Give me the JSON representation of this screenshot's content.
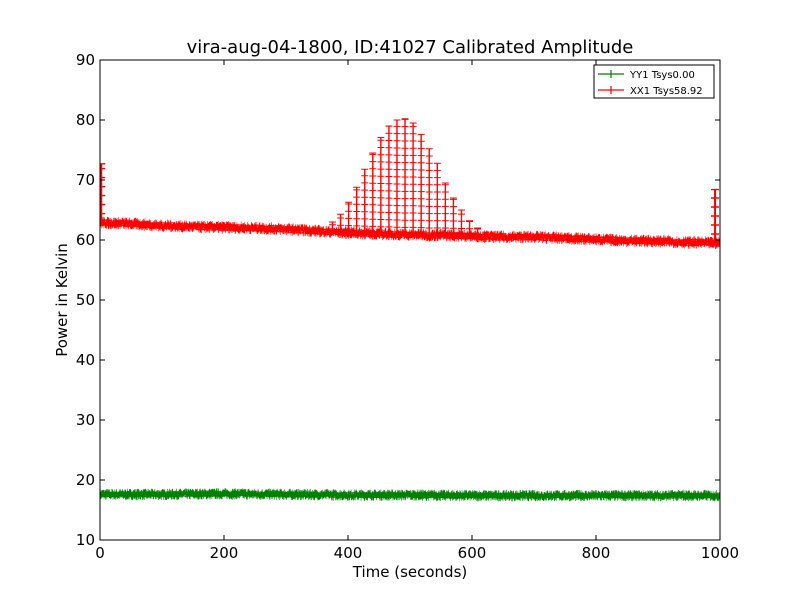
{
  "chart_data": {
    "type": "line",
    "title": "vira-aug-04-1800, ID:41027 Calibrated Amplitude",
    "xlabel": "Time (seconds)",
    "ylabel": "Power in Kelvin",
    "xlim": [
      0,
      1000
    ],
    "ylim": [
      10,
      90
    ],
    "x_ticks": [
      "0",
      "200",
      "400",
      "600",
      "800",
      "1000"
    ],
    "y_ticks": [
      "10",
      "20",
      "30",
      "40",
      "50",
      "60",
      "70",
      "80",
      "90"
    ],
    "grid": false,
    "legend_position": "top-right",
    "series": [
      {
        "name": "YY1 Tsys0.00",
        "color": "#008000",
        "x": [
          0,
          100,
          200,
          300,
          400,
          500,
          600,
          700,
          800,
          900,
          1000
        ],
        "values": [
          17.6,
          17.6,
          17.7,
          17.6,
          17.5,
          17.5,
          17.4,
          17.4,
          17.4,
          17.4,
          17.4
        ]
      },
      {
        "name": "XX1 Tsys58.92",
        "color": "#ff0000",
        "x": [
          0,
          50,
          100,
          150,
          200,
          250,
          300,
          350,
          400,
          430,
          460,
          490,
          510,
          530,
          560,
          590,
          620,
          650,
          700,
          750,
          800,
          850,
          900,
          950,
          990,
          1000
        ],
        "values": [
          62.9,
          62.7,
          62.4,
          62.2,
          62.1,
          62.0,
          61.8,
          61.5,
          61.2,
          61.1,
          61.0,
          60.9,
          60.9,
          60.8,
          60.8,
          60.7,
          60.6,
          60.5,
          60.5,
          60.3,
          60.1,
          59.9,
          59.8,
          59.6,
          59.5,
          59.5
        ],
        "peaks": {
          "x": [
            375,
            388,
            401,
            414,
            427,
            440,
            453,
            466,
            479,
            492,
            505,
            518,
            531,
            544,
            557,
            570,
            583,
            596,
            609,
            622
          ],
          "values": [
            63.0,
            64.3,
            66.3,
            68.8,
            71.8,
            74.5,
            77.1,
            79.0,
            80.0,
            80.2,
            79.5,
            77.6,
            75.2,
            72.8,
            69.5,
            67.0,
            65.0,
            63.2,
            62.0,
            61.3
          ]
        },
        "edge_spikes": {
          "x": [
            2,
            992
          ],
          "values": [
            72.7,
            68.4
          ]
        }
      }
    ]
  }
}
